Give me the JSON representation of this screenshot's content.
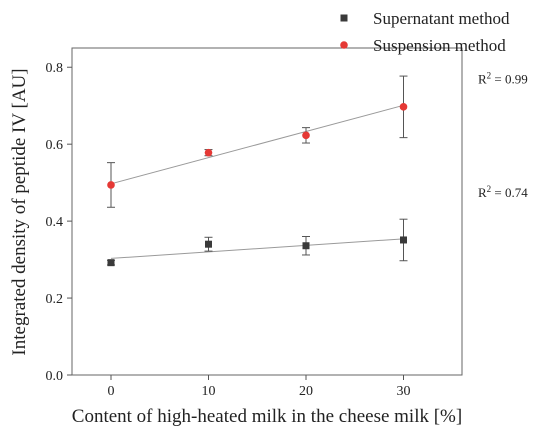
{
  "chart_data": {
    "type": "scatter",
    "xlabel": "Content of high-heated milk in the cheese milk [%]",
    "ylabel": "Integrated density of peptide IV [AU]",
    "xlim": [
      -4,
      36
    ],
    "ylim": [
      0.0,
      0.85
    ],
    "xticks": [
      0,
      10,
      20,
      30
    ],
    "yticks": [
      0.0,
      0.2,
      0.4,
      0.6,
      0.8
    ],
    "xtick_labels": [
      "0",
      "10",
      "20",
      "30"
    ],
    "ytick_labels": [
      "0.0",
      "0.2",
      "0.4",
      "0.6",
      "0.8"
    ],
    "grid": false,
    "legend_position": "top-right",
    "series": [
      {
        "name": "Supernatant method",
        "marker": "square",
        "color": "#3a3a3a",
        "x": [
          0,
          10,
          20,
          30
        ],
        "y": [
          0.292,
          0.34,
          0.336,
          0.351
        ],
        "error": [
          0.006,
          0.018,
          0.024,
          0.054
        ],
        "fit": {
          "intercept": 0.303,
          "slope": 0.0017
        },
        "annotation": {
          "label": "R",
          "sup": "2",
          "value": "= 0.74"
        }
      },
      {
        "name": "Suspension method",
        "marker": "circle",
        "color": "#e53935",
        "x": [
          0,
          10,
          20,
          30
        ],
        "y": [
          0.494,
          0.578,
          0.623,
          0.697
        ],
        "error": [
          0.058,
          0.008,
          0.02,
          0.08
        ],
        "fit": {
          "intercept": 0.497,
          "slope": 0.0068
        },
        "annotation": {
          "label": "R",
          "sup": "2",
          "value": "= 0.99"
        }
      }
    ]
  }
}
